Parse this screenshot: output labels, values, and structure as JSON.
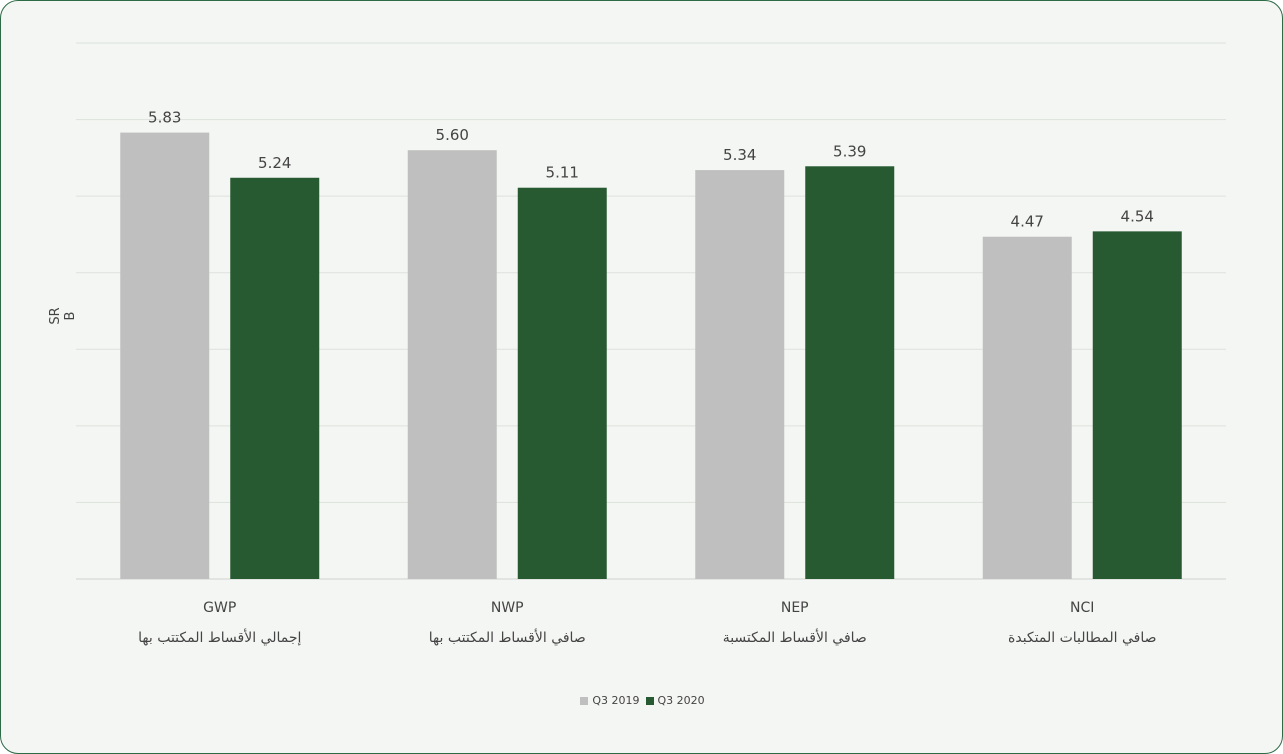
{
  "chart_data": {
    "type": "bar",
    "ylabel": "SR B",
    "categories": [
      {
        "en": "GWP",
        "ar": "إجمالي الأقساط المكتتب بها"
      },
      {
        "en": "NWP",
        "ar": "صافي الأقساط المكتتب بها"
      },
      {
        "en": "NEP",
        "ar": "صافي الأقساط المكتسبة"
      },
      {
        "en": "NCI",
        "ar": "صافي المطالبات المتكبدة"
      }
    ],
    "series": [
      {
        "name": "Q3 2019",
        "color": "#bfbfbf",
        "values": [
          5.83,
          5.6,
          5.34,
          4.47
        ]
      },
      {
        "name": "Q3 2020",
        "color": "#285a32",
        "values": [
          5.24,
          5.11,
          5.39,
          4.54
        ]
      }
    ],
    "value_labels": [
      [
        "5.83",
        "5.60",
        "5.34",
        "4.47"
      ],
      [
        "5.24",
        "5.11",
        "5.39",
        "4.54"
      ]
    ],
    "ylim": [
      0,
      7
    ],
    "grid": true,
    "legend": "bottom-center"
  }
}
